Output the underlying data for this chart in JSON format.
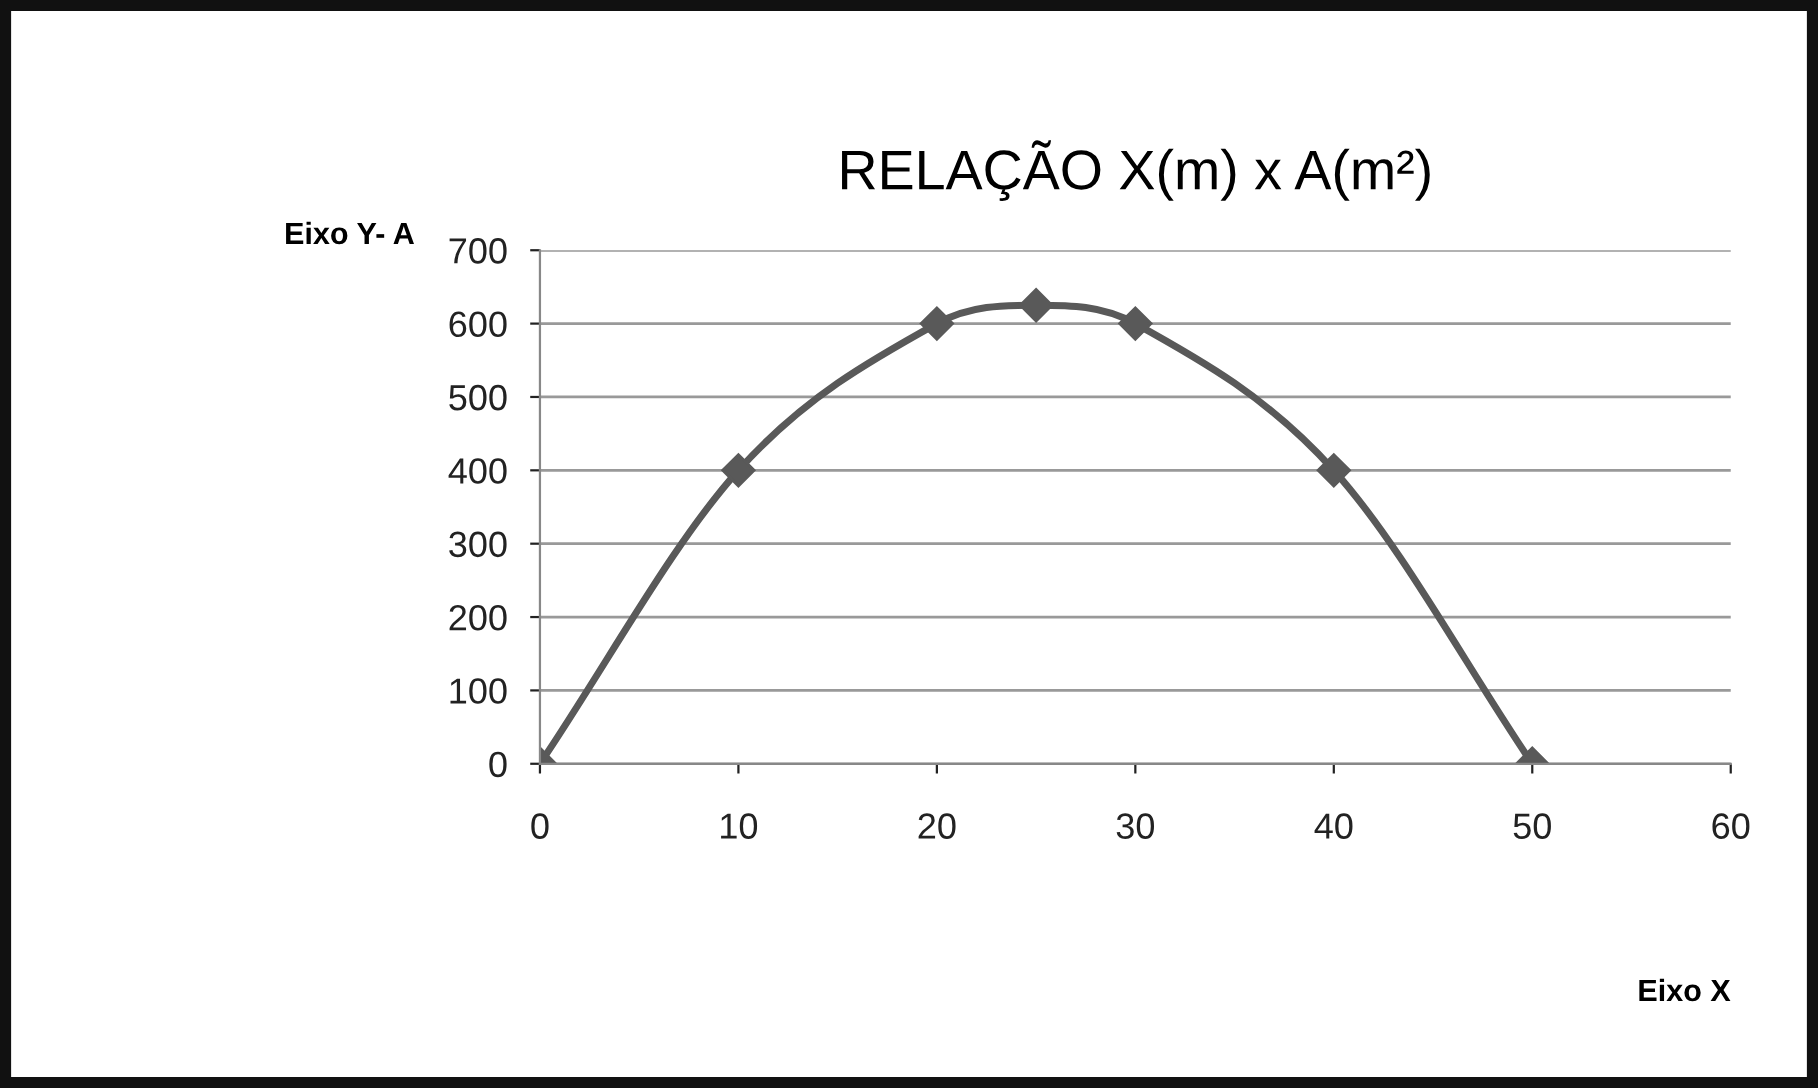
{
  "chart_data": {
    "type": "line",
    "title": "RELAÇÃO X(m) x A(m²)",
    "xlabel": "Eixo X",
    "ylabel": "Eixo Y- A",
    "x": [
      0,
      10,
      20,
      25,
      30,
      40,
      50
    ],
    "series": [
      {
        "color": "#595959",
        "values": [
          0,
          400,
          600,
          625,
          600,
          400,
          0
        ]
      }
    ],
    "xlim": [
      0,
      60
    ],
    "xticks": [
      0,
      10,
      20,
      30,
      40,
      50,
      60
    ],
    "ylim": [
      0,
      700
    ],
    "yticks": [
      0,
      100,
      200,
      300,
      400,
      500,
      600,
      700
    ],
    "grid": "y",
    "marker": "diamond",
    "line_style": "solid",
    "legend": false
  }
}
